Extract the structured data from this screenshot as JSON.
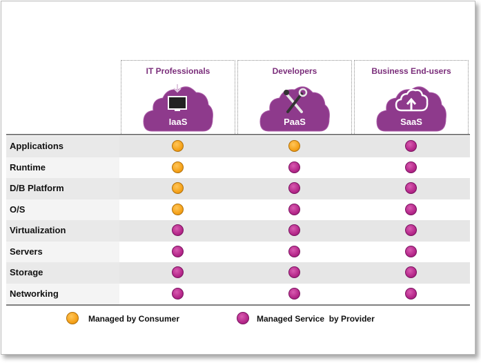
{
  "colors": {
    "consumer": "#f5a21a",
    "provider": "#b5288a",
    "cloud": "#8e3a8c",
    "title": "#7a2d7a"
  },
  "columns": [
    {
      "title": "IT Professionals",
      "service": "IaaS",
      "icon": "monitor-download-icon"
    },
    {
      "title": "Developers",
      "service": "PaaS",
      "icon": "tools-icon"
    },
    {
      "title": "Business End-users",
      "service": "SaaS",
      "icon": "cloud-upload-icon"
    }
  ],
  "rows": [
    {
      "label": "Applications",
      "cells": [
        "consumer",
        "consumer",
        "provider"
      ]
    },
    {
      "label": "Runtime",
      "cells": [
        "consumer",
        "provider",
        "provider"
      ]
    },
    {
      "label": "D/B Platform",
      "cells": [
        "consumer",
        "provider",
        "provider"
      ]
    },
    {
      "label": "O/S",
      "cells": [
        "consumer",
        "provider",
        "provider"
      ]
    },
    {
      "label": "Virtualization",
      "cells": [
        "provider",
        "provider",
        "provider"
      ]
    },
    {
      "label": "Servers",
      "cells": [
        "provider",
        "provider",
        "provider"
      ]
    },
    {
      "label": "Storage",
      "cells": [
        "provider",
        "provider",
        "provider"
      ]
    },
    {
      "label": "Networking",
      "cells": [
        "provider",
        "provider",
        "provider"
      ]
    }
  ],
  "legend": {
    "consumer": "Managed by Consumer",
    "provider": "Managed Service  by Provider"
  }
}
